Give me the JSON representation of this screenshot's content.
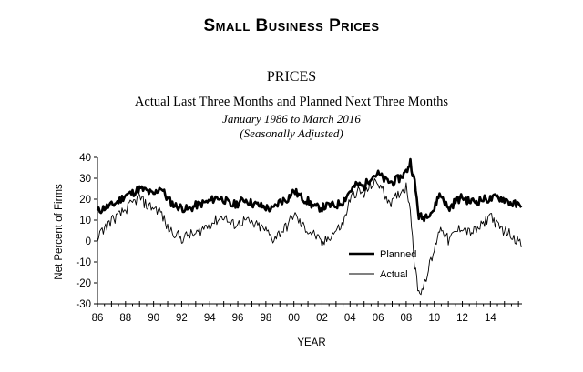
{
  "header": {
    "title": "Small Business Prices"
  },
  "chart_data": {
    "type": "line",
    "title": "PRICES",
    "subtitle": "Actual Last Three Months and Planned Next Three Months",
    "date_range": "January 1986 to March 2016",
    "note": "(Seasonally Adjusted)",
    "xlabel": "YEAR",
    "ylabel": "Net Percent of Firms",
    "xlim": [
      1986,
      2016.25
    ],
    "ylim": [
      -30,
      40
    ],
    "x_ticks": [
      "86",
      "88",
      "90",
      "92",
      "94",
      "96",
      "98",
      "00",
      "02",
      "04",
      "06",
      "08",
      "10",
      "12",
      "14"
    ],
    "x_tick_years": [
      1986,
      1988,
      1990,
      1992,
      1994,
      1996,
      1998,
      2000,
      2002,
      2004,
      2006,
      2008,
      2010,
      2012,
      2014
    ],
    "y_ticks": [
      "40",
      "30",
      "20",
      "10",
      "0",
      "-10",
      "-20",
      "-30"
    ],
    "y_tick_values": [
      40,
      30,
      20,
      10,
      0,
      -10,
      -20,
      -30
    ],
    "legend_position": "lower-center",
    "series": [
      {
        "name": "Planned",
        "style": "thick",
        "x": [
          1986.0,
          1986.5,
          1987.0,
          1987.5,
          1988.0,
          1988.5,
          1989.0,
          1989.5,
          1990.0,
          1990.5,
          1991.0,
          1991.5,
          1992.0,
          1992.5,
          1993.0,
          1993.5,
          1994.0,
          1994.5,
          1995.0,
          1995.5,
          1996.0,
          1996.5,
          1997.0,
          1997.5,
          1998.0,
          1998.5,
          1999.0,
          1999.5,
          2000.0,
          2000.5,
          2001.0,
          2001.5,
          2002.0,
          2002.5,
          2003.0,
          2003.5,
          2004.0,
          2004.5,
          2005.0,
          2005.5,
          2006.0,
          2006.5,
          2007.0,
          2007.5,
          2008.0,
          2008.3,
          2008.6,
          2008.9,
          2009.2,
          2009.5,
          2010.0,
          2010.3,
          2010.6,
          2011.0,
          2011.5,
          2012.0,
          2012.5,
          2013.0,
          2013.5,
          2014.0,
          2014.5,
          2015.0,
          2015.5,
          2016.0,
          2016.2
        ],
        "values": [
          14,
          16,
          17,
          19,
          22,
          23,
          25,
          24,
          22,
          26,
          20,
          17,
          16,
          15,
          17,
          18,
          19,
          21,
          20,
          17,
          18,
          20,
          18,
          17,
          16,
          15,
          19,
          20,
          24,
          21,
          19,
          16,
          16,
          17,
          17,
          19,
          24,
          27,
          26,
          31,
          32,
          29,
          28,
          30,
          33,
          38,
          28,
          12,
          11,
          13,
          15,
          22,
          21,
          15,
          19,
          21,
          19,
          19,
          20,
          20,
          21,
          20,
          18,
          17,
          16
        ]
      },
      {
        "name": "Actual",
        "style": "thin",
        "x": [
          1986.0,
          1986.5,
          1987.0,
          1987.5,
          1988.0,
          1988.5,
          1989.0,
          1989.5,
          1990.0,
          1990.5,
          1991.0,
          1991.5,
          1992.0,
          1992.5,
          1993.0,
          1993.5,
          1994.0,
          1994.5,
          1995.0,
          1995.5,
          1996.0,
          1996.5,
          1997.0,
          1997.5,
          1998.0,
          1998.5,
          1999.0,
          1999.5,
          2000.0,
          2000.5,
          2001.0,
          2001.5,
          2002.0,
          2002.5,
          2003.0,
          2003.5,
          2004.0,
          2004.5,
          2005.0,
          2005.5,
          2006.0,
          2006.5,
          2007.0,
          2007.5,
          2008.0,
          2008.3,
          2008.6,
          2008.9,
          2009.2,
          2009.5,
          2010.0,
          2010.3,
          2010.6,
          2011.0,
          2011.5,
          2012.0,
          2012.5,
          2013.0,
          2013.5,
          2014.0,
          2014.5,
          2015.0,
          2015.5,
          2016.0,
          2016.2
        ],
        "values": [
          2,
          6,
          10,
          12,
          15,
          18,
          21,
          17,
          16,
          14,
          6,
          4,
          1,
          3,
          3,
          6,
          8,
          10,
          12,
          8,
          8,
          10,
          8,
          7,
          5,
          1,
          4,
          7,
          13,
          8,
          5,
          3,
          -2,
          2,
          5,
          8,
          20,
          24,
          22,
          27,
          28,
          22,
          18,
          23,
          26,
          16,
          -12,
          -25,
          -22,
          -15,
          -5,
          5,
          6,
          0,
          4,
          7,
          4,
          5,
          8,
          13,
          7,
          5,
          3,
          0,
          -3
        ]
      }
    ]
  }
}
